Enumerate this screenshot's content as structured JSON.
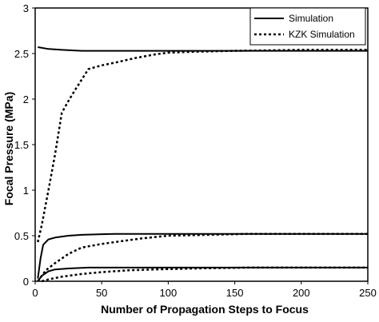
{
  "chart_data": {
    "type": "line",
    "title": "",
    "xlabel": "Number of Propagation Steps to Focus",
    "ylabel": "Focal Pressure (MPa)",
    "xlim": [
      0,
      250
    ],
    "ylim": [
      0,
      3
    ],
    "xticks": [
      "0",
      "50",
      "100",
      "150",
      "200",
      "250"
    ],
    "yticks": [
      "0",
      "0.5",
      "1",
      "1.5",
      "2",
      "2.5",
      "3"
    ],
    "grid": false,
    "legend_position": "top-right",
    "legend": [
      {
        "label": "Simulation",
        "style": "solid"
      },
      {
        "label": "KZK Simulation",
        "style": "dotted"
      }
    ],
    "series": [
      {
        "name": "Simulation",
        "style": "solid",
        "points": [
          [
            2,
            2.57
          ],
          [
            10,
            2.55
          ],
          [
            20,
            2.54
          ],
          [
            35,
            2.53
          ],
          [
            60,
            2.53
          ],
          [
            100,
            2.53
          ],
          [
            250,
            2.53
          ]
        ]
      },
      {
        "name": "KZK Simulation",
        "style": "dotted",
        "points": [
          [
            2,
            0.43
          ],
          [
            5,
            0.62
          ],
          [
            10,
            1.0
          ],
          [
            15,
            1.4
          ],
          [
            20,
            1.85
          ],
          [
            25,
            1.98
          ],
          [
            30,
            2.1
          ],
          [
            40,
            2.33
          ],
          [
            50,
            2.37
          ],
          [
            60,
            2.4
          ],
          [
            75,
            2.45
          ],
          [
            90,
            2.49
          ],
          [
            100,
            2.51
          ],
          [
            120,
            2.52
          ],
          [
            150,
            2.53
          ],
          [
            200,
            2.54
          ],
          [
            250,
            2.54
          ]
        ]
      },
      {
        "name": "Simulation",
        "style": "solid",
        "points": [
          [
            2,
            0.03
          ],
          [
            4,
            0.25
          ],
          [
            6,
            0.4
          ],
          [
            10,
            0.46
          ],
          [
            15,
            0.48
          ],
          [
            25,
            0.5
          ],
          [
            35,
            0.51
          ],
          [
            60,
            0.52
          ],
          [
            100,
            0.52
          ],
          [
            250,
            0.52
          ]
        ]
      },
      {
        "name": "KZK Simulation",
        "style": "dotted",
        "points": [
          [
            2,
            0.0
          ],
          [
            8,
            0.12
          ],
          [
            15,
            0.2
          ],
          [
            25,
            0.3
          ],
          [
            35,
            0.37
          ],
          [
            50,
            0.41
          ],
          [
            65,
            0.44
          ],
          [
            80,
            0.47
          ],
          [
            100,
            0.5
          ],
          [
            130,
            0.51
          ],
          [
            160,
            0.52
          ],
          [
            200,
            0.52
          ],
          [
            250,
            0.52
          ]
        ]
      },
      {
        "name": "Simulation",
        "style": "solid",
        "points": [
          [
            2,
            0.0
          ],
          [
            5,
            0.06
          ],
          [
            10,
            0.11
          ],
          [
            15,
            0.13
          ],
          [
            25,
            0.14
          ],
          [
            40,
            0.15
          ],
          [
            70,
            0.15
          ],
          [
            250,
            0.15
          ]
        ]
      },
      {
        "name": "KZK Simulation",
        "style": "dotted",
        "points": [
          [
            5,
            0.0
          ],
          [
            10,
            0.02
          ],
          [
            20,
            0.05
          ],
          [
            35,
            0.08
          ],
          [
            50,
            0.1
          ],
          [
            70,
            0.12
          ],
          [
            90,
            0.13
          ],
          [
            120,
            0.14
          ],
          [
            160,
            0.15
          ],
          [
            250,
            0.15
          ]
        ]
      }
    ]
  }
}
